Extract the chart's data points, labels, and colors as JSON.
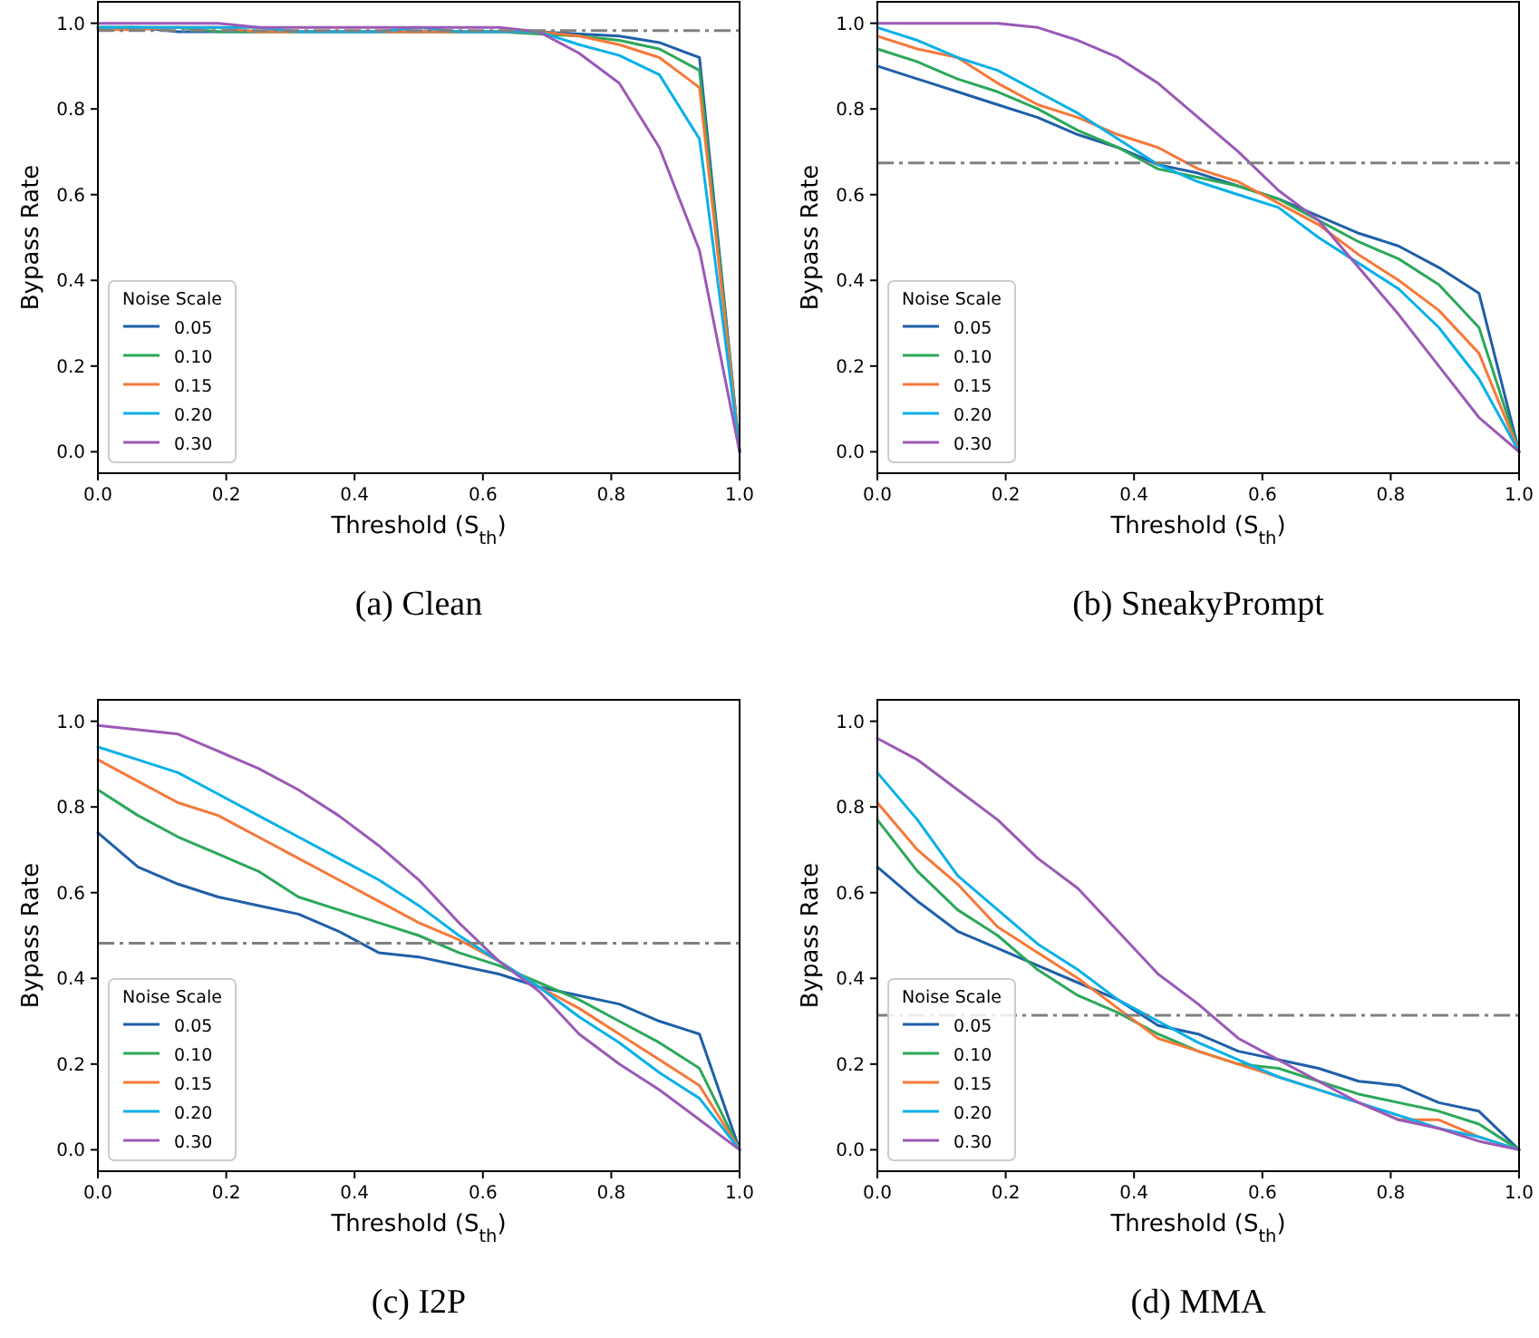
{
  "chart_data": [
    {
      "type": "line",
      "title": "(a) Clean",
      "xlabel": "Threshold (S$_{th}$)",
      "ylabel": "Bypass Rate",
      "legend_title": "Noise Scale",
      "legend": "bottom left",
      "grid": false,
      "marker": "none",
      "line_style": "solid",
      "x": [
        0,
        0.0625,
        0.125,
        0.1875,
        0.25,
        0.3125,
        0.375,
        0.4375,
        0.5,
        0.5625,
        0.625,
        0.6875,
        0.75,
        0.8125,
        0.875,
        0.9375,
        1
      ],
      "xlim": [
        0,
        1
      ],
      "ylim": [
        -0.05,
        1.05
      ],
      "xticks": [
        {
          "value": 0,
          "label": "0.0"
        },
        {
          "value": 0.2,
          "label": "0.2"
        },
        {
          "value": 0.4,
          "label": "0.4"
        },
        {
          "value": 0.6,
          "label": "0.6"
        },
        {
          "value": 0.8,
          "label": "0.8"
        },
        {
          "value": 1,
          "label": "1.0"
        }
      ],
      "yticks": [
        {
          "value": 0,
          "label": "0.0"
        },
        {
          "value": 0.2,
          "label": "0.2"
        },
        {
          "value": 0.4,
          "label": "0.4"
        },
        {
          "value": 0.6,
          "label": "0.6"
        },
        {
          "value": 0.8,
          "label": "0.8"
        },
        {
          "value": 1,
          "label": "1.0"
        }
      ],
      "ref_lines": [
        {
          "axis": "y",
          "value": 0.983,
          "color": "#808080",
          "line_style": "dashed"
        }
      ],
      "series": [
        {
          "name": "0.05",
          "color": "#1f5fa8",
          "values": [
            0.99,
            0.99,
            0.98,
            0.98,
            0.98,
            0.98,
            0.98,
            0.98,
            0.98,
            0.98,
            0.98,
            0.98,
            0.975,
            0.97,
            0.955,
            0.92,
            0
          ]
        },
        {
          "name": "0.10",
          "color": "#2ca85a",
          "values": [
            0.99,
            0.99,
            0.99,
            0.98,
            0.98,
            0.98,
            0.98,
            0.98,
            0.98,
            0.98,
            0.98,
            0.975,
            0.97,
            0.96,
            0.94,
            0.89,
            0
          ]
        },
        {
          "name": "0.15",
          "color": "#f5793a",
          "values": [
            0.985,
            0.985,
            0.99,
            0.99,
            0.98,
            0.98,
            0.98,
            0.98,
            0.98,
            0.98,
            0.98,
            0.98,
            0.97,
            0.95,
            0.92,
            0.85,
            0
          ]
        },
        {
          "name": "0.20",
          "color": "#0ab0e8",
          "values": [
            0.99,
            0.99,
            0.99,
            0.99,
            0.99,
            0.98,
            0.98,
            0.98,
            0.99,
            0.98,
            0.98,
            0.98,
            0.95,
            0.925,
            0.88,
            0.73,
            0
          ]
        },
        {
          "name": "0.30",
          "color": "#9b59b6",
          "values": [
            1.0,
            1.0,
            1.0,
            1.0,
            0.99,
            0.99,
            0.99,
            0.99,
            0.99,
            0.99,
            0.99,
            0.98,
            0.93,
            0.86,
            0.71,
            0.47,
            0
          ]
        }
      ]
    },
    {
      "type": "line",
      "title": "(b) SneakyPrompt",
      "xlabel": "Threshold (S$_{th}$)",
      "ylabel": "Bypass Rate",
      "legend_title": "Noise Scale",
      "legend": "bottom left",
      "grid": false,
      "marker": "none",
      "line_style": "solid",
      "x": [
        0,
        0.0625,
        0.125,
        0.1875,
        0.25,
        0.3125,
        0.375,
        0.4375,
        0.5,
        0.5625,
        0.625,
        0.6875,
        0.75,
        0.8125,
        0.875,
        0.9375,
        1
      ],
      "xlim": [
        0,
        1
      ],
      "ylim": [
        -0.05,
        1.05
      ],
      "xticks": [
        {
          "value": 0,
          "label": "0.0"
        },
        {
          "value": 0.2,
          "label": "0.2"
        },
        {
          "value": 0.4,
          "label": "0.4"
        },
        {
          "value": 0.6,
          "label": "0.6"
        },
        {
          "value": 0.8,
          "label": "0.8"
        },
        {
          "value": 1,
          "label": "1.0"
        }
      ],
      "yticks": [
        {
          "value": 0,
          "label": "0.0"
        },
        {
          "value": 0.2,
          "label": "0.2"
        },
        {
          "value": 0.4,
          "label": "0.4"
        },
        {
          "value": 0.6,
          "label": "0.6"
        },
        {
          "value": 0.8,
          "label": "0.8"
        },
        {
          "value": 1,
          "label": "1.0"
        }
      ],
      "ref_lines": [
        {
          "axis": "y",
          "value": 0.674,
          "color": "#808080",
          "line_style": "dashed"
        }
      ],
      "series": [
        {
          "name": "0.05",
          "color": "#1f5fa8",
          "values": [
            0.9,
            0.87,
            0.84,
            0.81,
            0.78,
            0.74,
            0.71,
            0.67,
            0.65,
            0.62,
            0.59,
            0.55,
            0.51,
            0.48,
            0.43,
            0.37,
            0
          ]
        },
        {
          "name": "0.10",
          "color": "#2ca85a",
          "values": [
            0.94,
            0.91,
            0.87,
            0.84,
            0.8,
            0.75,
            0.71,
            0.66,
            0.64,
            0.62,
            0.59,
            0.54,
            0.49,
            0.45,
            0.39,
            0.29,
            0
          ]
        },
        {
          "name": "0.15",
          "color": "#f5793a",
          "values": [
            0.97,
            0.94,
            0.92,
            0.86,
            0.81,
            0.78,
            0.74,
            0.71,
            0.66,
            0.63,
            0.58,
            0.53,
            0.46,
            0.4,
            0.33,
            0.23,
            0
          ]
        },
        {
          "name": "0.20",
          "color": "#0ab0e8",
          "values": [
            0.99,
            0.96,
            0.92,
            0.89,
            0.84,
            0.79,
            0.73,
            0.67,
            0.63,
            0.6,
            0.57,
            0.5,
            0.44,
            0.38,
            0.29,
            0.17,
            0
          ]
        },
        {
          "name": "0.30",
          "color": "#9b59b6",
          "values": [
            1.0,
            1.0,
            1.0,
            1.0,
            0.99,
            0.96,
            0.92,
            0.86,
            0.78,
            0.7,
            0.61,
            0.54,
            0.43,
            0.32,
            0.2,
            0.08,
            0
          ]
        }
      ]
    },
    {
      "type": "line",
      "title": "(c) I2P",
      "xlabel": "Threshold (S$_{th}$)",
      "ylabel": "Bypass Rate",
      "legend_title": "Noise Scale",
      "legend": "bottom left",
      "grid": false,
      "marker": "none",
      "line_style": "solid",
      "x": [
        0,
        0.0625,
        0.125,
        0.1875,
        0.25,
        0.3125,
        0.375,
        0.4375,
        0.5,
        0.5625,
        0.625,
        0.6875,
        0.75,
        0.8125,
        0.875,
        0.9375,
        1
      ],
      "xlim": [
        0,
        1
      ],
      "ylim": [
        -0.05,
        1.05
      ],
      "xticks": [
        {
          "value": 0,
          "label": "0.0"
        },
        {
          "value": 0.2,
          "label": "0.2"
        },
        {
          "value": 0.4,
          "label": "0.4"
        },
        {
          "value": 0.6,
          "label": "0.6"
        },
        {
          "value": 0.8,
          "label": "0.8"
        },
        {
          "value": 1,
          "label": "1.0"
        }
      ],
      "yticks": [
        {
          "value": 0,
          "label": "0.0"
        },
        {
          "value": 0.2,
          "label": "0.2"
        },
        {
          "value": 0.4,
          "label": "0.4"
        },
        {
          "value": 0.6,
          "label": "0.6"
        },
        {
          "value": 0.8,
          "label": "0.8"
        },
        {
          "value": 1,
          "label": "1.0"
        }
      ],
      "ref_lines": [
        {
          "axis": "y",
          "value": 0.482,
          "color": "#808080",
          "line_style": "dashed"
        }
      ],
      "series": [
        {
          "name": "0.05",
          "color": "#1f5fa8",
          "values": [
            0.74,
            0.66,
            0.62,
            0.59,
            0.57,
            0.55,
            0.51,
            0.46,
            0.45,
            0.43,
            0.41,
            0.38,
            0.36,
            0.34,
            0.3,
            0.27,
            0
          ]
        },
        {
          "name": "0.10",
          "color": "#2ca85a",
          "values": [
            0.84,
            0.78,
            0.73,
            0.69,
            0.65,
            0.59,
            0.56,
            0.53,
            0.5,
            0.46,
            0.43,
            0.39,
            0.35,
            0.3,
            0.25,
            0.19,
            0
          ]
        },
        {
          "name": "0.15",
          "color": "#f5793a",
          "values": [
            0.91,
            0.86,
            0.81,
            0.78,
            0.73,
            0.68,
            0.63,
            0.58,
            0.53,
            0.49,
            0.44,
            0.38,
            0.33,
            0.27,
            0.21,
            0.15,
            0
          ]
        },
        {
          "name": "0.20",
          "color": "#0ab0e8",
          "values": [
            0.94,
            0.91,
            0.88,
            0.83,
            0.78,
            0.73,
            0.68,
            0.63,
            0.57,
            0.5,
            0.44,
            0.38,
            0.31,
            0.25,
            0.18,
            0.12,
            0
          ]
        },
        {
          "name": "0.30",
          "color": "#9b59b6",
          "values": [
            0.99,
            0.98,
            0.97,
            0.93,
            0.89,
            0.84,
            0.78,
            0.71,
            0.63,
            0.53,
            0.44,
            0.37,
            0.27,
            0.2,
            0.14,
            0.07,
            0
          ]
        }
      ]
    },
    {
      "type": "line",
      "title": "(d) MMA",
      "xlabel": "Threshold (S$_{th}$)",
      "ylabel": "Bypass Rate",
      "legend_title": "Noise Scale",
      "legend": "bottom left",
      "grid": false,
      "marker": "none",
      "line_style": "solid",
      "x": [
        0,
        0.0625,
        0.125,
        0.1875,
        0.25,
        0.3125,
        0.375,
        0.4375,
        0.5,
        0.5625,
        0.625,
        0.6875,
        0.75,
        0.8125,
        0.875,
        0.9375,
        1
      ],
      "xlim": [
        0,
        1
      ],
      "ylim": [
        -0.05,
        1.05
      ],
      "xticks": [
        {
          "value": 0,
          "label": "0.0"
        },
        {
          "value": 0.2,
          "label": "0.2"
        },
        {
          "value": 0.4,
          "label": "0.4"
        },
        {
          "value": 0.6,
          "label": "0.6"
        },
        {
          "value": 0.8,
          "label": "0.8"
        },
        {
          "value": 1,
          "label": "1.0"
        }
      ],
      "yticks": [
        {
          "value": 0,
          "label": "0.0"
        },
        {
          "value": 0.2,
          "label": "0.2"
        },
        {
          "value": 0.4,
          "label": "0.4"
        },
        {
          "value": 0.6,
          "label": "0.6"
        },
        {
          "value": 0.8,
          "label": "0.8"
        },
        {
          "value": 1,
          "label": "1.0"
        }
      ],
      "ref_lines": [
        {
          "axis": "y",
          "value": 0.314,
          "color": "#808080",
          "line_style": "dashed"
        }
      ],
      "series": [
        {
          "name": "0.05",
          "color": "#1f5fa8",
          "values": [
            0.66,
            0.58,
            0.51,
            0.47,
            0.43,
            0.39,
            0.35,
            0.29,
            0.27,
            0.23,
            0.21,
            0.19,
            0.16,
            0.15,
            0.11,
            0.09,
            0
          ]
        },
        {
          "name": "0.10",
          "color": "#2ca85a",
          "values": [
            0.77,
            0.65,
            0.56,
            0.5,
            0.42,
            0.36,
            0.32,
            0.27,
            0.23,
            0.2,
            0.19,
            0.16,
            0.13,
            0.11,
            0.09,
            0.06,
            0
          ]
        },
        {
          "name": "0.15",
          "color": "#f5793a",
          "values": [
            0.81,
            0.7,
            0.62,
            0.52,
            0.46,
            0.4,
            0.33,
            0.26,
            0.23,
            0.2,
            0.17,
            0.14,
            0.11,
            0.07,
            0.07,
            0.03,
            0
          ]
        },
        {
          "name": "0.20",
          "color": "#0ab0e8",
          "values": [
            0.88,
            0.77,
            0.64,
            0.56,
            0.48,
            0.42,
            0.35,
            0.3,
            0.25,
            0.21,
            0.17,
            0.14,
            0.11,
            0.08,
            0.05,
            0.03,
            0
          ]
        },
        {
          "name": "0.30",
          "color": "#9b59b6",
          "values": [
            0.96,
            0.91,
            0.84,
            0.77,
            0.68,
            0.61,
            0.51,
            0.41,
            0.34,
            0.26,
            0.21,
            0.16,
            0.11,
            0.07,
            0.05,
            0.02,
            0
          ]
        }
      ]
    }
  ]
}
